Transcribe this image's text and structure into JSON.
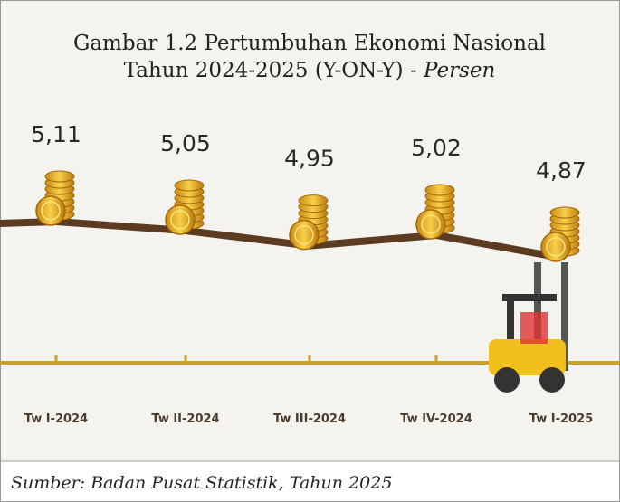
{
  "chart_data": {
    "type": "line",
    "title_line1": "Gambar 1.2 Pertumbuhan Ekonomi Nasional",
    "title_line2": "Tahun 2024-2025 (Y-ON-Y) -",
    "title_emphasis": "Persen",
    "categories": [
      "Tw I-2024",
      "Tw II-2024",
      "Tw III-2024",
      "Tw IV-2024",
      "Tw I-2025"
    ],
    "values": [
      5.11,
      5.05,
      4.95,
      5.02,
      4.87
    ],
    "value_labels": [
      "5,11",
      "5,05",
      "4,95",
      "5,02",
      "4,87"
    ],
    "color": "#5b3b22",
    "source": "Sumber: Badan Pusat Statistik, Tahun 2025"
  }
}
